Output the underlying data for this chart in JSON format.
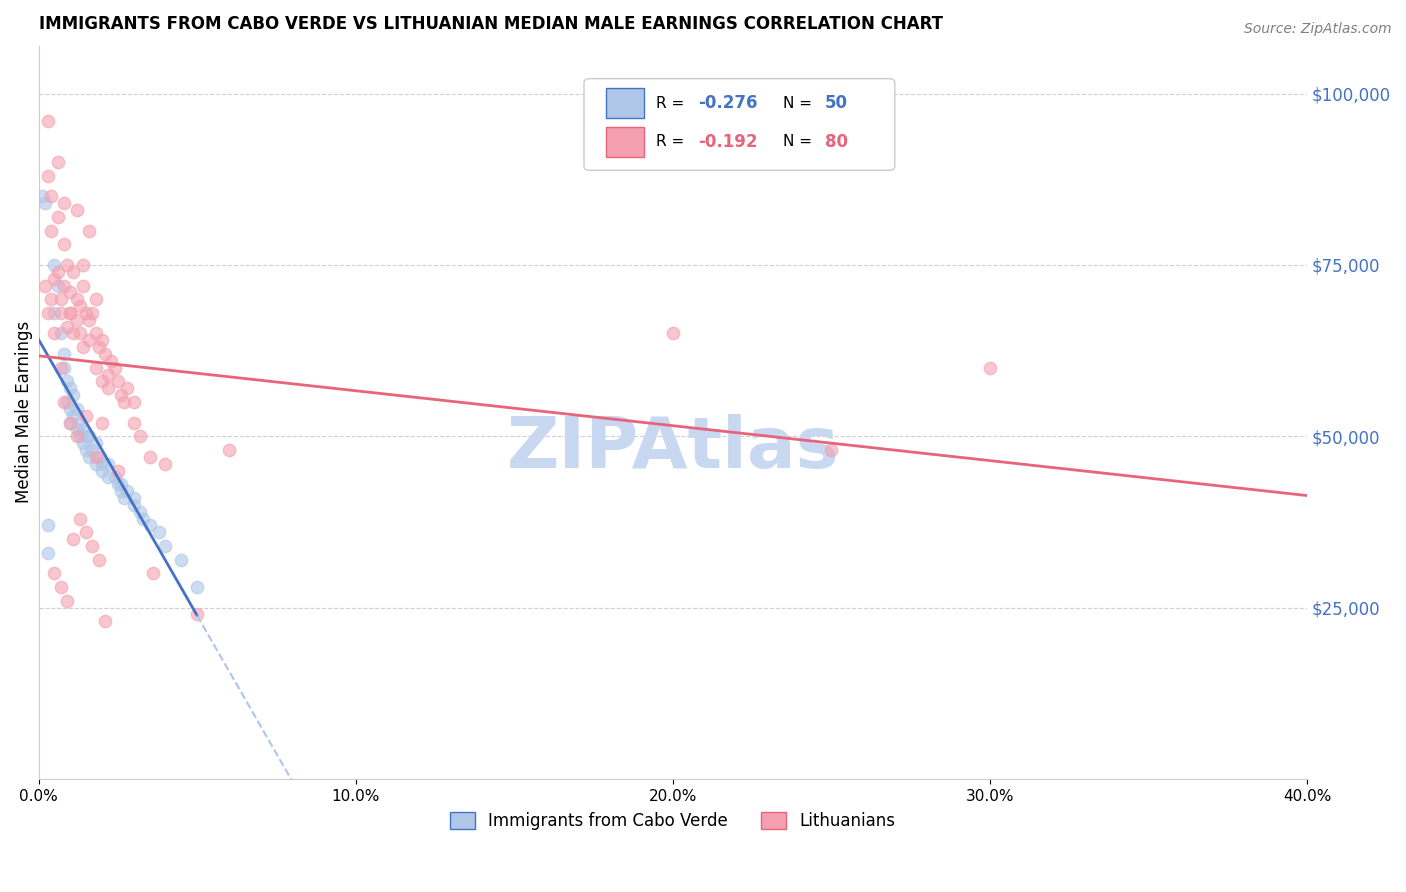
{
  "title": "IMMIGRANTS FROM CABO VERDE VS LITHUANIAN MEDIAN MALE EARNINGS CORRELATION CHART",
  "source": "Source: ZipAtlas.com",
  "ylabel": "Median Male Earnings",
  "right_ytick_values": [
    100000,
    75000,
    50000,
    25000
  ],
  "xmin": 0.0,
  "xmax": 0.4,
  "ymin": 0,
  "ymax": 107000,
  "legend_blue_R": "-0.276",
  "legend_blue_N": "50",
  "legend_pink_R": "-0.192",
  "legend_pink_N": "80",
  "blue_scatter_x": [
    0.001,
    0.002,
    0.005,
    0.005,
    0.006,
    0.007,
    0.008,
    0.008,
    0.009,
    0.009,
    0.01,
    0.01,
    0.01,
    0.011,
    0.011,
    0.012,
    0.012,
    0.013,
    0.013,
    0.014,
    0.014,
    0.015,
    0.015,
    0.016,
    0.016,
    0.017,
    0.018,
    0.018,
    0.019,
    0.02,
    0.02,
    0.022,
    0.022,
    0.024,
    0.025,
    0.026,
    0.026,
    0.027,
    0.028,
    0.03,
    0.03,
    0.032,
    0.033,
    0.035,
    0.038,
    0.04,
    0.003,
    0.003,
    0.045,
    0.05
  ],
  "blue_scatter_y": [
    85000,
    84000,
    75000,
    68000,
    72000,
    65000,
    62000,
    60000,
    58000,
    55000,
    57000,
    54000,
    52000,
    56000,
    53000,
    54000,
    51000,
    52000,
    50000,
    51000,
    49000,
    50000,
    48000,
    50000,
    47000,
    48000,
    49000,
    46000,
    47000,
    46000,
    45000,
    46000,
    44000,
    44000,
    43000,
    42000,
    43000,
    41000,
    42000,
    40000,
    41000,
    39000,
    38000,
    37000,
    36000,
    34000,
    33000,
    37000,
    32000,
    28000
  ],
  "pink_scatter_x": [
    0.002,
    0.003,
    0.004,
    0.004,
    0.005,
    0.005,
    0.006,
    0.006,
    0.007,
    0.007,
    0.008,
    0.008,
    0.009,
    0.009,
    0.01,
    0.01,
    0.011,
    0.011,
    0.012,
    0.012,
    0.013,
    0.013,
    0.014,
    0.014,
    0.015,
    0.016,
    0.016,
    0.017,
    0.018,
    0.018,
    0.019,
    0.02,
    0.02,
    0.021,
    0.022,
    0.022,
    0.023,
    0.024,
    0.025,
    0.026,
    0.027,
    0.028,
    0.03,
    0.03,
    0.032,
    0.035,
    0.036,
    0.04,
    0.05,
    0.06,
    0.003,
    0.003,
    0.004,
    0.006,
    0.008,
    0.01,
    0.012,
    0.014,
    0.016,
    0.018,
    0.007,
    0.008,
    0.01,
    0.012,
    0.015,
    0.018,
    0.02,
    0.025,
    0.2,
    0.25,
    0.005,
    0.007,
    0.009,
    0.011,
    0.013,
    0.015,
    0.017,
    0.019,
    0.021,
    0.3
  ],
  "pink_scatter_y": [
    72000,
    68000,
    80000,
    70000,
    73000,
    65000,
    82000,
    74000,
    70000,
    68000,
    78000,
    72000,
    75000,
    66000,
    71000,
    68000,
    74000,
    65000,
    70000,
    67000,
    69000,
    65000,
    72000,
    63000,
    68000,
    67000,
    64000,
    68000,
    65000,
    60000,
    63000,
    64000,
    58000,
    62000,
    59000,
    57000,
    61000,
    60000,
    58000,
    56000,
    55000,
    57000,
    55000,
    52000,
    50000,
    47000,
    30000,
    46000,
    24000,
    48000,
    96000,
    88000,
    85000,
    90000,
    84000,
    68000,
    83000,
    75000,
    80000,
    70000,
    60000,
    55000,
    52000,
    50000,
    53000,
    47000,
    52000,
    45000,
    65000,
    48000,
    30000,
    28000,
    26000,
    35000,
    38000,
    36000,
    34000,
    32000,
    23000,
    60000
  ],
  "blue_color": "#aec6e8",
  "pink_color": "#f4a0b0",
  "blue_line_color": "#4472c4",
  "pink_line_color": "#e8647a",
  "blue_dash_color": "#aec6e8",
  "grid_color": "#d0d0d0",
  "right_label_color": "#4472c4",
  "watermark_color": "#c8d8f0",
  "scatter_size": 80,
  "scatter_alpha": 0.6,
  "scatter_lw": 1.0
}
